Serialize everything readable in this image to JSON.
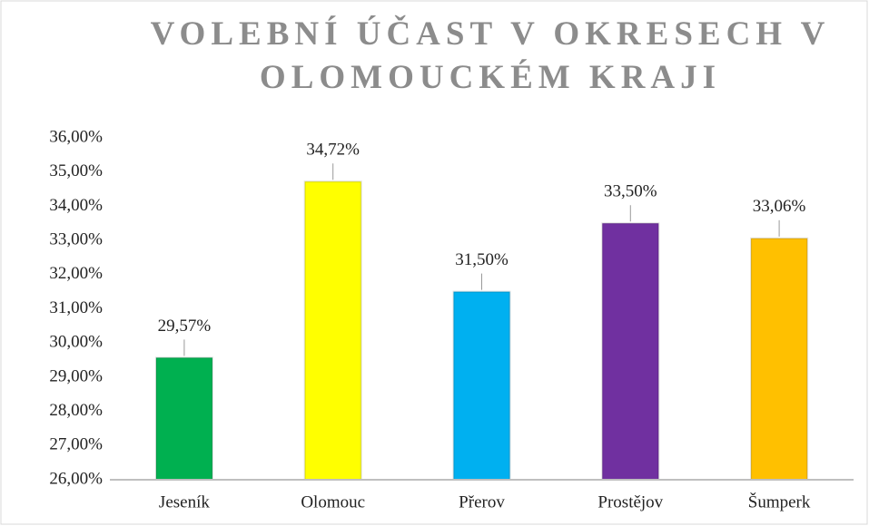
{
  "chart_data": {
    "type": "bar",
    "title": "VOLEBNÍ ÚČAST V OKRESECH V OLOMOUCKÉM KRAJI",
    "categories": [
      "Jeseník",
      "Olomouc",
      "Přerov",
      "Prostějov",
      "Šumperk"
    ],
    "values": [
      29.57,
      34.72,
      31.5,
      33.5,
      33.06
    ],
    "value_labels": [
      "29,57%",
      "34,72%",
      "31,50%",
      "33,50%",
      "33,06%"
    ],
    "colors": [
      "#00b050",
      "#ffff00",
      "#00b0f0",
      "#7030a0",
      "#ffc000"
    ],
    "ylim": [
      26,
      36
    ],
    "yticks": [
      {
        "value": 26,
        "label": "26,00%"
      },
      {
        "value": 27,
        "label": "27,00%"
      },
      {
        "value": 28,
        "label": "28,00%"
      },
      {
        "value": 29,
        "label": "29,00%"
      },
      {
        "value": 30,
        "label": "30,00%"
      },
      {
        "value": 31,
        "label": "31,00%"
      },
      {
        "value": 32,
        "label": "32,00%"
      },
      {
        "value": 33,
        "label": "33,00%"
      },
      {
        "value": 34,
        "label": "34,00%"
      },
      {
        "value": 35,
        "label": "35,00%"
      },
      {
        "value": 36,
        "label": "36,00%"
      }
    ],
    "grid": false
  }
}
